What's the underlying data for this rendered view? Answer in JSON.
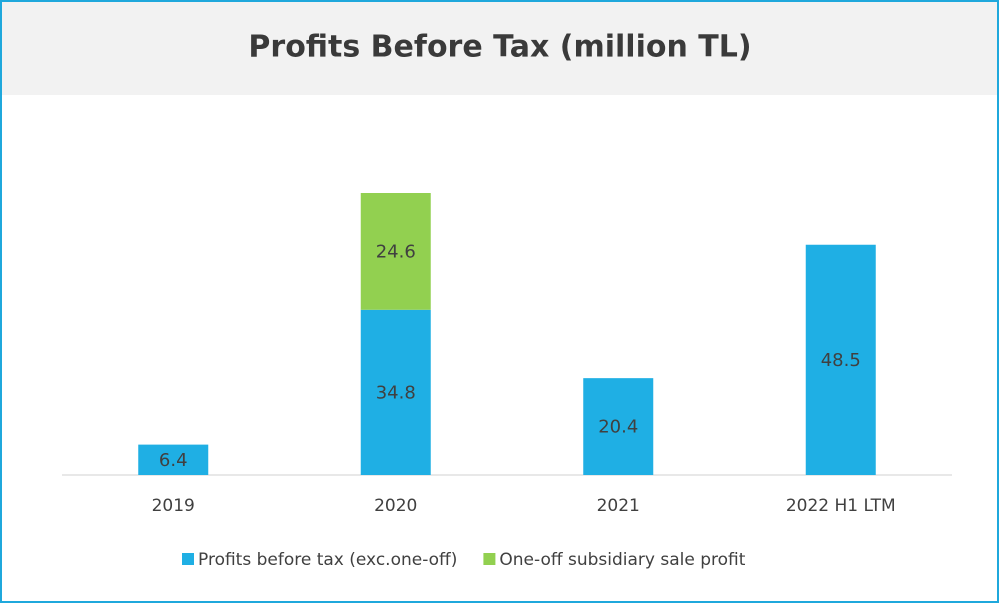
{
  "chart_data": {
    "type": "bar",
    "stacked": true,
    "title": "Profits Before Tax (million TL)",
    "categories": [
      "2019",
      "2020",
      "2021",
      "2022 H1 LTM"
    ],
    "series": [
      {
        "name": "Profits before tax (exc.one-off)",
        "color": "#1fafe4",
        "values": [
          6.4,
          34.8,
          20.4,
          48.5
        ]
      },
      {
        "name": "One-off subsidiary sale profit",
        "color": "#92d050",
        "values": [
          null,
          24.6,
          null,
          null
        ]
      }
    ]
  }
}
